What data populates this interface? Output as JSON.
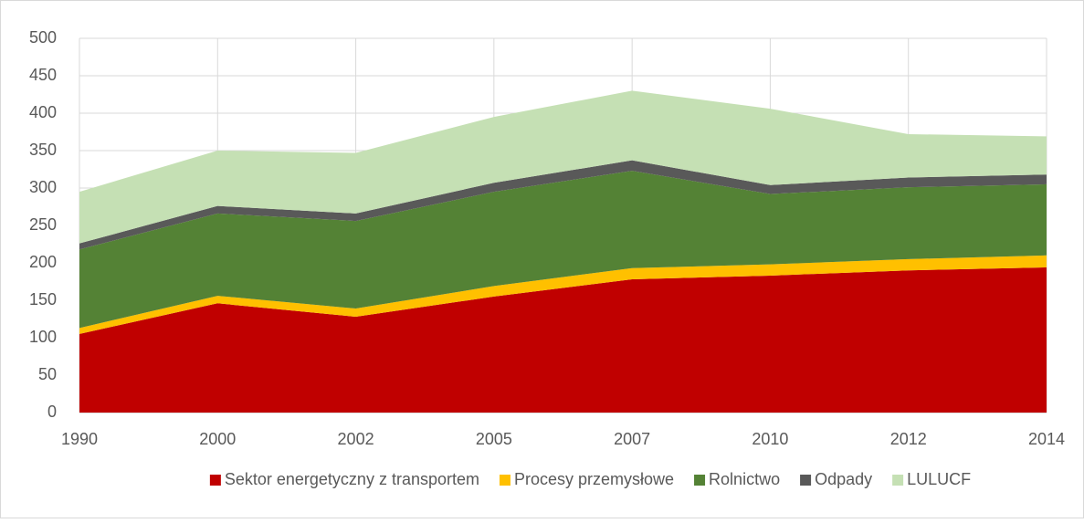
{
  "chart_data": {
    "type": "stacked_area",
    "categories": [
      "1990",
      "2000",
      "2002",
      "2005",
      "2007",
      "2010",
      "2012",
      "2014"
    ],
    "series": [
      {
        "name": "Sektor energetyczny z transportem",
        "color": "#c00000",
        "values": [
          105,
          146,
          128,
          155,
          178,
          183,
          190,
          194
        ]
      },
      {
        "name": "Procesy przemysłowe",
        "color": "#ffc000",
        "values": [
          8,
          10,
          11,
          14,
          15,
          15,
          15,
          16
        ]
      },
      {
        "name": "Rolnictwo",
        "color": "#548235",
        "values": [
          105,
          110,
          117,
          126,
          130,
          94,
          96,
          95
        ]
      },
      {
        "name": "Odpady",
        "color": "#595959",
        "values": [
          8,
          10,
          10,
          12,
          14,
          12,
          13,
          13
        ]
      },
      {
        "name": "LULUCF",
        "color": "#c5e0b4",
        "values": [
          69,
          74,
          81,
          88,
          93,
          102,
          58,
          51
        ]
      }
    ],
    "ylim": [
      0,
      500
    ],
    "yticks": [
      0,
      50,
      100,
      150,
      200,
      250,
      300,
      350,
      400,
      450,
      500
    ],
    "grid": true,
    "legend": "bottom"
  }
}
